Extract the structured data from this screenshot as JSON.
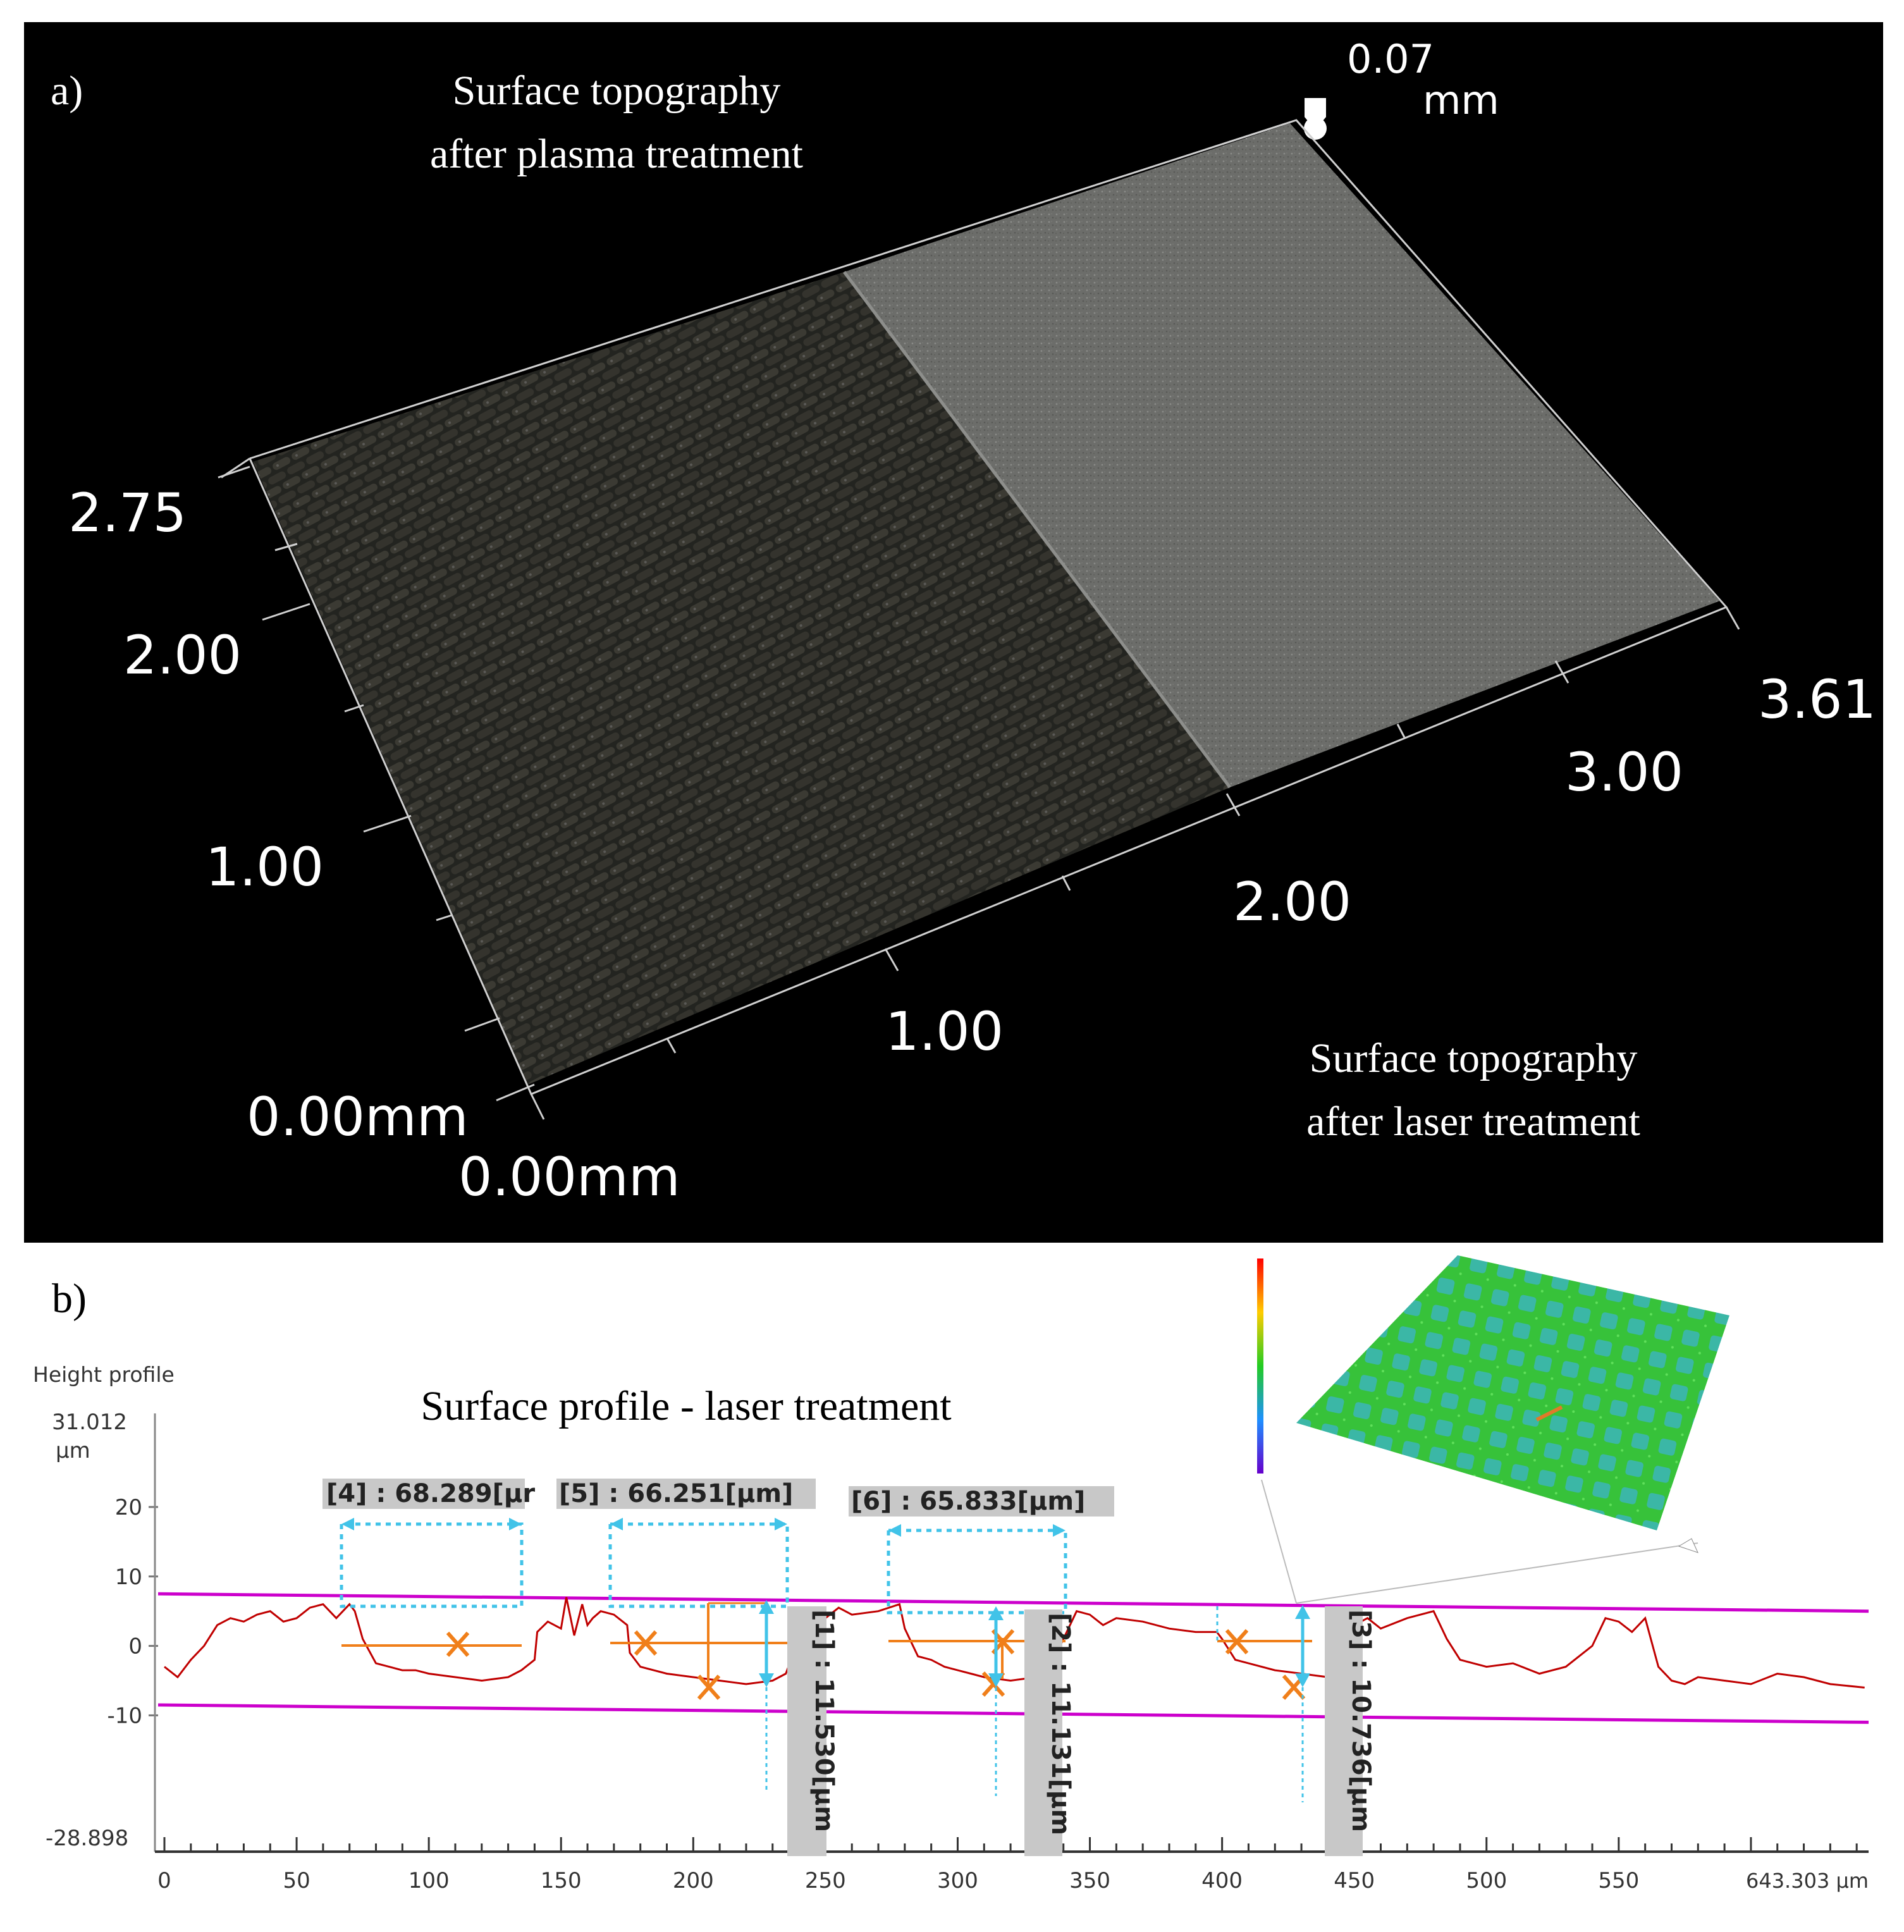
{
  "panel_a": {
    "label": "a)",
    "title_plasma": [
      "Surface topography",
      "after plasma treatment"
    ],
    "title_laser": [
      "Surface topography",
      "after laser treatment"
    ],
    "z_value": "0.07",
    "z_unit": "mm",
    "left_axis_ticks": [
      "0.00mm",
      "1.00",
      "2.00",
      "2.75"
    ],
    "front_axis_ticks": [
      "0.00mm",
      "1.00",
      "2.00",
      "3.00",
      "3.61"
    ],
    "colors": {
      "background": "#000000",
      "plasma_surface": "#26251f",
      "laser_surface": "#6e6f6c",
      "axis": "#d9d9d9"
    }
  },
  "panel_b": {
    "label": "b)",
    "title": "Surface profile - laser treatment",
    "height_profile_label": "Height profile",
    "y_max_label": "31.012",
    "y_unit": "µm",
    "y_min_label": "-28.898",
    "x_max_label": "643.303 µm",
    "widths": [
      "[4] : 68.289[µr",
      "[5] : 66.251[µm]",
      "[6] : 65.833[µm]"
    ],
    "depths": [
      "[1] : 11.530[µm",
      "[2] : 11.131[µm",
      "[3] : 10.736[µm"
    ],
    "colors": {
      "profile": "#c00000",
      "limit_lines": "#cc00cc",
      "measure_orange": "#f07f1a",
      "measure_cyan": "#41c3e8",
      "inset_surface": "#3cc840"
    }
  },
  "chart_data": {
    "type": "line",
    "xlabel": "",
    "ylabel": "Height profile",
    "xlim": [
      0,
      643.303
    ],
    "ylim": [
      -28.898,
      31.012
    ],
    "x_ticks": [
      0,
      50,
      100,
      150,
      200,
      250,
      300,
      350,
      400,
      450,
      500,
      550
    ],
    "y_ticks": [
      20,
      10,
      0,
      -10
    ],
    "upper_limit_line": [
      [
        0,
        7.5
      ],
      [
        643.303,
        5
      ]
    ],
    "lower_limit_line": [
      [
        0,
        -8.5
      ],
      [
        643.303,
        -11
      ]
    ],
    "series": [
      {
        "x": [
          0,
          5,
          10,
          15,
          20,
          25,
          30,
          35,
          40,
          45,
          50,
          55,
          60,
          65,
          70,
          72,
          75,
          80,
          85,
          90,
          95,
          100,
          110,
          120,
          130,
          135,
          140,
          141,
          145,
          150,
          152,
          155,
          158,
          160,
          162,
          165,
          170,
          175,
          176,
          180,
          190,
          200,
          210,
          220,
          230,
          235,
          238,
          240,
          245,
          250,
          255,
          260,
          270,
          278,
          280,
          285,
          290,
          295,
          300,
          305,
          310,
          320,
          330,
          335,
          340,
          345,
          350,
          355,
          360,
          370,
          380,
          390,
          398,
          400,
          405,
          410,
          420,
          430,
          440,
          445,
          450,
          455,
          460,
          470,
          480,
          485,
          490,
          500,
          510,
          520,
          530,
          540,
          545,
          550,
          555,
          560,
          565,
          570,
          575,
          580,
          590,
          600,
          610,
          620,
          630,
          643
        ],
        "y": [
          -3,
          -4.5,
          -2,
          0,
          3,
          4,
          3.5,
          4.5,
          5,
          3.5,
          4,
          5.5,
          6,
          4,
          6,
          5,
          1,
          -2.5,
          -3,
          -3.5,
          -3.5,
          -4,
          -4.5,
          -5,
          -4.5,
          -3.5,
          -2,
          2,
          3.5,
          2.5,
          7,
          1.5,
          6,
          3,
          4,
          5,
          4.5,
          3,
          -1,
          -3,
          -4,
          -4.5,
          -5,
          -5.5,
          -5,
          -4,
          -1,
          3,
          5,
          4,
          5.5,
          4.5,
          5,
          6,
          2.5,
          -1.5,
          -2,
          -3,
          -3.5,
          -4,
          -4.5,
          -5,
          -4.5,
          -3,
          1,
          5,
          4.5,
          3,
          4,
          3.5,
          2.5,
          2,
          2,
          1,
          -2,
          -2.5,
          -3.5,
          -4,
          -4.5,
          -3,
          3,
          4,
          2.5,
          4,
          5,
          1,
          -2,
          -3,
          -2.5,
          -4,
          -3,
          0,
          4,
          3.5,
          2,
          4,
          -3,
          -5,
          -5.5,
          -4.5,
          -5,
          -5.5,
          -4,
          -4.5,
          -5.5,
          -6
        ]
      }
    ]
  }
}
